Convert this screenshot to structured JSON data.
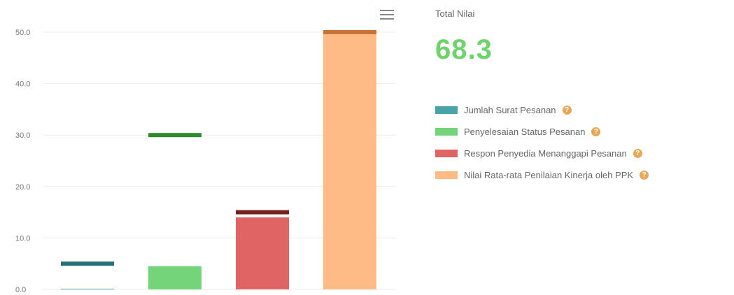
{
  "chart_data": {
    "type": "bar",
    "categories": [
      "Jumlah Surat Pesanan",
      "Penyelesaian Status Pesanan",
      "Respon Penyedia Menanggapi Pesanan",
      "Nilai Rata-rata Penilaian Kinerja oleh PPK"
    ],
    "values": [
      0,
      4.5,
      14,
      50
    ],
    "targets": [
      5,
      30,
      15,
      50
    ],
    "colors": [
      "#4aa3a8",
      "#74d47a",
      "#e06464",
      "#ffbb85"
    ],
    "target_colors": [
      "#2a6f73",
      "#2e8b2e",
      "#7a1f1f",
      "#c9743a"
    ],
    "ylim": [
      0,
      50
    ],
    "yticks": [
      "0.0",
      "10.0",
      "20.0",
      "30.0",
      "40.0",
      "50.0"
    ],
    "grid": true,
    "legend_position": "right",
    "legend": [
      {
        "label": "Jumlah Surat Pesanan",
        "color": "#4aa3a8"
      },
      {
        "label": "Penyelesaian Status Pesanan",
        "color": "#74d47a"
      },
      {
        "label": "Respon Penyedia Menanggapi Pesanan",
        "color": "#e06464"
      },
      {
        "label": "Nilai Rata-rata Penilaian Kinerja oleh PPK",
        "color": "#ffbb85"
      }
    ]
  },
  "summary": {
    "label": "Total Nilai",
    "value": "68.3"
  },
  "icons": {
    "menu": "hamburger-menu-icon",
    "info": "info-icon"
  }
}
